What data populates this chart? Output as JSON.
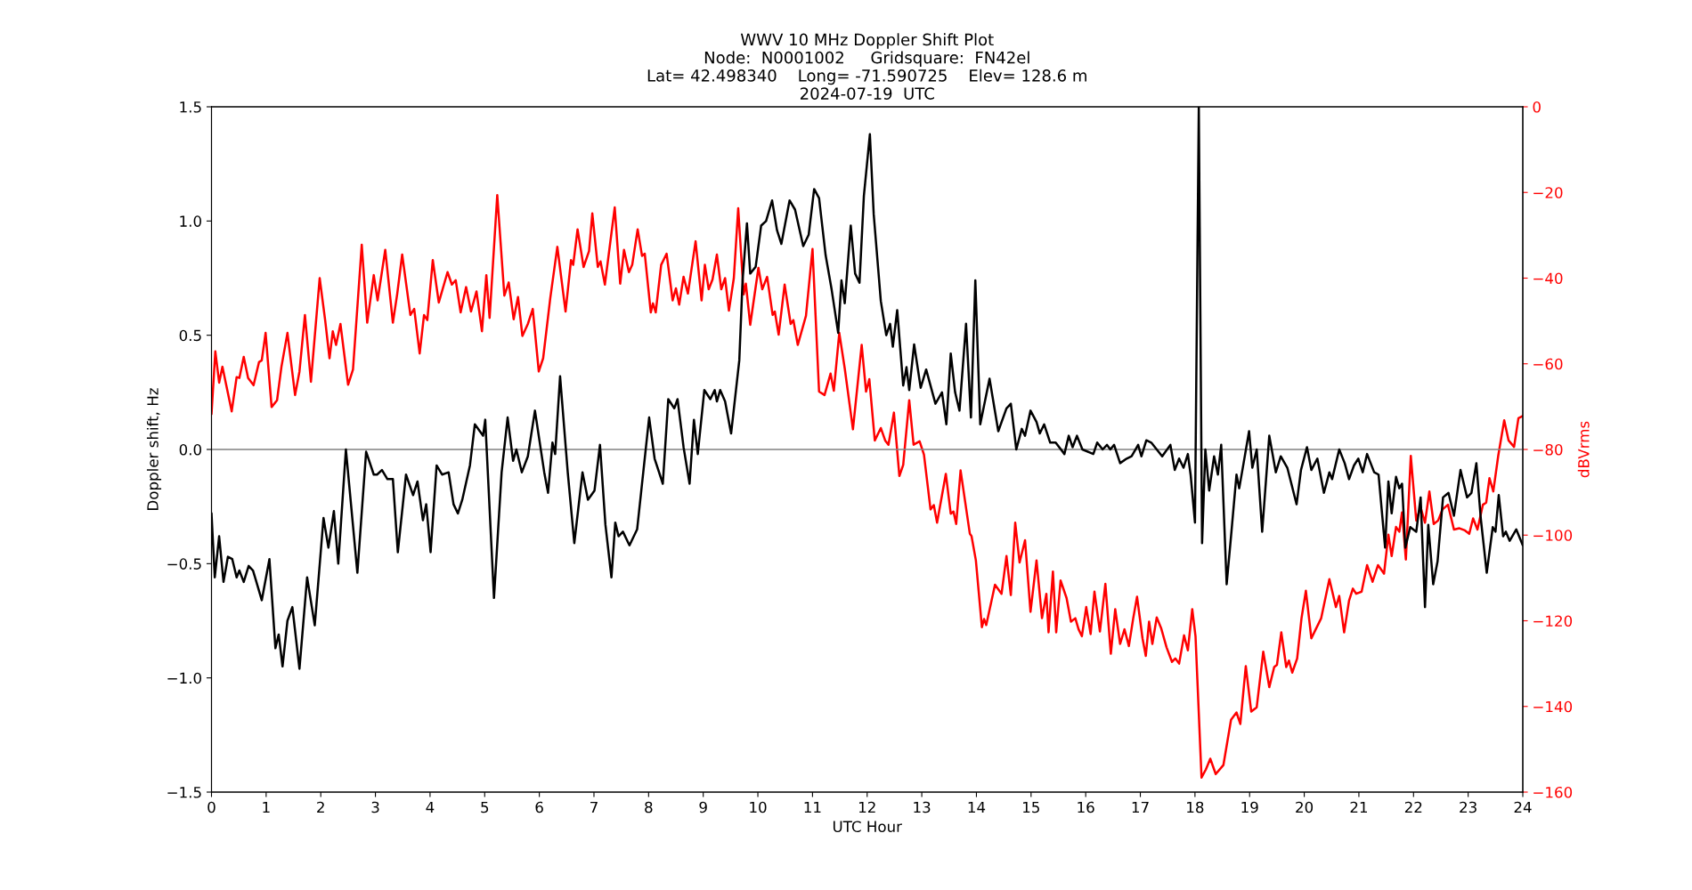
{
  "chart_data": {
    "type": "line",
    "title": "WWV 10 MHz Doppler Shift Plot\nNode:  N0001002     Gridsquare:  FN42el\nLat= 42.498340    Long= -71.590725    Elev= 128.6 m\n2024-07-19  UTC",
    "xlabel": "UTC Hour",
    "ylabel": "Doppler shift, Hz",
    "y2label": "dBVrms",
    "xlim": [
      0,
      24
    ],
    "xticks": [
      0,
      1,
      2,
      3,
      4,
      5,
      6,
      7,
      8,
      9,
      10,
      11,
      12,
      13,
      14,
      15,
      16,
      17,
      18,
      19,
      20,
      21,
      22,
      23,
      24
    ],
    "ylim": [
      -1.5,
      1.5
    ],
    "yticks": [
      -1.5,
      {
        "value": -1,
        "label": "−1.0"
      },
      -0.5,
      {
        "value": 0,
        "label": "0.0"
      },
      0.5,
      {
        "value": 1,
        "label": "1.0"
      },
      1.5
    ],
    "y2lim": [
      -160,
      0
    ],
    "y2ticks": [
      -160,
      -140,
      -120,
      -100,
      -80,
      -60,
      -40,
      -20,
      0
    ],
    "grid": false,
    "legend": false,
    "ref_lines": [
      {
        "axis": "y",
        "value": 0,
        "color": "#808080"
      }
    ],
    "series": [
      {
        "color": "#000000",
        "x": [
          0,
          0.06,
          0.14,
          0.22,
          0.3,
          0.38,
          0.46,
          0.51,
          0.59,
          0.68,
          0.76,
          0.81,
          0.92,
          1.06,
          1.17,
          1.23,
          1.3,
          1.39,
          1.48,
          1.61,
          1.75,
          1.89,
          2.05,
          2.14,
          2.24,
          2.32,
          2.46,
          2.67,
          2.83,
          2.97,
          3.03,
          3.12,
          3.22,
          3.32,
          3.41,
          3.56,
          3.69,
          3.77,
          3.87,
          3.93,
          4.01,
          4.12,
          4.22,
          4.34,
          4.43,
          4.51,
          4.59,
          4.73,
          4.82,
          4.97,
          5.01,
          5.17,
          5.31,
          5.42,
          5.52,
          5.58,
          5.68,
          5.79,
          5.92,
          6.09,
          6.16,
          6.24,
          6.29,
          6.38,
          6.52,
          6.64,
          6.79,
          6.89,
          7.01,
          7.11,
          7.21,
          7.32,
          7.39,
          7.45,
          7.53,
          7.65,
          7.79,
          8.01,
          8.11,
          8.26,
          8.36,
          8.47,
          8.53,
          8.64,
          8.75,
          8.83,
          8.9,
          9.02,
          9.13,
          9.21,
          9.25,
          9.31,
          9.4,
          9.51,
          9.66,
          9.72,
          9.8,
          9.86,
          9.96,
          10.06,
          10.15,
          10.26,
          10.35,
          10.43,
          10.58,
          10.68,
          10.83,
          10.93,
          11.03,
          11.12,
          11.24,
          11.35,
          11.47,
          11.53,
          11.59,
          11.7,
          11.78,
          11.86,
          11.94,
          12.05,
          12.12,
          12.25,
          12.35,
          12.42,
          12.47,
          12.55,
          12.66,
          12.72,
          12.77,
          12.86,
          12.98,
          13.08,
          13.25,
          13.37,
          13.45,
          13.53,
          13.61,
          13.69,
          13.81,
          13.9,
          13.98,
          14.07,
          14.24,
          14.4,
          14.55,
          14.63,
          14.73,
          14.83,
          14.89,
          14.99,
          15.1,
          15.16,
          15.24,
          15.35,
          15.45,
          15.61,
          15.69,
          15.76,
          15.84,
          15.94,
          16.14,
          16.21,
          16.31,
          16.39,
          16.45,
          16.52,
          16.63,
          16.75,
          16.84,
          16.96,
          17.02,
          17.11,
          17.2,
          17.3,
          17.4,
          17.55,
          17.63,
          17.71,
          17.79,
          17.87,
          17.92,
          18.0,
          18.07,
          18.13,
          18.19,
          18.26,
          18.35,
          18.42,
          18.48,
          18.58,
          18.66,
          18.76,
          18.81,
          18.89,
          18.99,
          19.05,
          19.13,
          19.23,
          19.36,
          19.48,
          19.57,
          19.69,
          19.86,
          19.94,
          20.05,
          20.13,
          20.24,
          20.36,
          20.46,
          20.51,
          20.64,
          20.74,
          20.82,
          20.91,
          20.99,
          21.07,
          21.15,
          21.28,
          21.36,
          21.48,
          21.54,
          21.6,
          21.68,
          21.74,
          21.79,
          21.85,
          21.94,
          22.05,
          22.13,
          22.21,
          22.27,
          22.36,
          22.44,
          22.54,
          22.64,
          22.74,
          22.86,
          22.98,
          23.06,
          23.15,
          23.23,
          23.34,
          23.45,
          23.5,
          23.56,
          23.64,
          23.69,
          23.76,
          23.88,
          24.0
        ],
        "values": [
          -0.28,
          -0.56,
          -0.38,
          -0.58,
          -0.47,
          -0.48,
          -0.56,
          -0.53,
          -0.58,
          -0.51,
          -0.53,
          -0.57,
          -0.66,
          -0.48,
          -0.87,
          -0.81,
          -0.95,
          -0.75,
          -0.69,
          -0.96,
          -0.56,
          -0.77,
          -0.3,
          -0.43,
          -0.27,
          -0.5,
          0.0,
          -0.54,
          -0.01,
          -0.11,
          -0.11,
          -0.09,
          -0.13,
          -0.13,
          -0.45,
          -0.11,
          -0.2,
          -0.14,
          -0.31,
          -0.24,
          -0.45,
          -0.07,
          -0.11,
          -0.1,
          -0.24,
          -0.28,
          -0.22,
          -0.07,
          0.11,
          0.06,
          0.13,
          -0.65,
          -0.1,
          0.14,
          -0.05,
          0.0,
          -0.1,
          -0.03,
          0.17,
          -0.1,
          -0.19,
          0.03,
          -0.02,
          0.32,
          -0.1,
          -0.41,
          -0.1,
          -0.22,
          -0.18,
          0.02,
          -0.33,
          -0.56,
          -0.32,
          -0.38,
          -0.36,
          -0.42,
          -0.35,
          0.14,
          -0.04,
          -0.15,
          0.22,
          0.18,
          0.22,
          0.01,
          -0.15,
          0.13,
          -0.02,
          0.26,
          0.22,
          0.26,
          0.21,
          0.26,
          0.21,
          0.07,
          0.39,
          0.74,
          0.99,
          0.77,
          0.8,
          0.98,
          1.0,
          1.09,
          0.96,
          0.9,
          1.09,
          1.05,
          0.89,
          0.94,
          1.14,
          1.1,
          0.85,
          0.7,
          0.51,
          0.74,
          0.64,
          0.98,
          0.77,
          0.73,
          1.11,
          1.38,
          1.03,
          0.65,
          0.5,
          0.55,
          0.45,
          0.61,
          0.28,
          0.36,
          0.26,
          0.46,
          0.27,
          0.35,
          0.2,
          0.25,
          0.11,
          0.42,
          0.25,
          0.17,
          0.55,
          0.14,
          0.74,
          0.11,
          0.31,
          0.08,
          0.18,
          0.2,
          0.0,
          0.09,
          0.06,
          0.17,
          0.12,
          0.07,
          0.11,
          0.03,
          0.03,
          -0.02,
          0.06,
          0.01,
          0.06,
          0.0,
          -0.02,
          0.03,
          0.0,
          0.02,
          0.0,
          0.02,
          -0.06,
          -0.04,
          -0.03,
          0.02,
          -0.03,
          0.04,
          0.03,
          0.0,
          -0.03,
          0.02,
          -0.09,
          -0.04,
          -0.08,
          -0.02,
          -0.11,
          -0.32,
          1.5,
          -0.41,
          0.0,
          -0.18,
          -0.03,
          -0.11,
          0.02,
          -0.59,
          -0.38,
          -0.11,
          -0.17,
          -0.06,
          0.08,
          -0.08,
          0.0,
          -0.36,
          0.06,
          -0.1,
          -0.03,
          -0.08,
          -0.24,
          -0.09,
          0.01,
          -0.09,
          -0.04,
          -0.19,
          -0.1,
          -0.13,
          0.0,
          -0.06,
          -0.13,
          -0.07,
          -0.04,
          -0.1,
          -0.02,
          -0.1,
          -0.11,
          -0.43,
          -0.14,
          -0.28,
          -0.12,
          -0.17,
          -0.15,
          -0.43,
          -0.34,
          -0.36,
          -0.21,
          -0.69,
          -0.33,
          -0.59,
          -0.49,
          -0.21,
          -0.19,
          -0.29,
          -0.09,
          -0.21,
          -0.19,
          -0.06,
          -0.3,
          -0.54,
          -0.34,
          -0.36,
          -0.2,
          -0.38,
          -0.36,
          -0.4,
          -0.35,
          -0.42
        ]
      },
      {
        "color": "#ff0000",
        "axis": "y2",
        "x": [
          0,
          0.07,
          0.14,
          0.2,
          0.37,
          0.46,
          0.51,
          0.59,
          0.67,
          0.77,
          0.87,
          0.92,
          0.99,
          1.1,
          1.2,
          1.28,
          1.39,
          1.53,
          1.61,
          1.71,
          1.82,
          1.98,
          2.08,
          2.16,
          2.22,
          2.28,
          2.36,
          2.5,
          2.59,
          2.75,
          2.85,
          2.97,
          3.04,
          3.18,
          3.32,
          3.4,
          3.49,
          3.64,
          3.71,
          3.81,
          3.89,
          3.95,
          4.05,
          4.16,
          4.32,
          4.4,
          4.47,
          4.56,
          4.66,
          4.75,
          4.85,
          4.95,
          5.03,
          5.09,
          5.23,
          5.36,
          5.44,
          5.53,
          5.61,
          5.69,
          5.79,
          5.88,
          5.99,
          6.07,
          6.2,
          6.33,
          6.48,
          6.58,
          6.62,
          6.7,
          6.81,
          6.91,
          6.97,
          7.07,
          7.12,
          7.2,
          7.38,
          7.48,
          7.55,
          7.64,
          7.7,
          7.8,
          7.88,
          7.93,
          8.04,
          8.08,
          8.13,
          8.23,
          8.33,
          8.44,
          8.5,
          8.56,
          8.64,
          8.72,
          8.86,
          8.97,
          9.03,
          9.1,
          9.17,
          9.25,
          9.33,
          9.4,
          9.47,
          9.56,
          9.64,
          9.74,
          9.78,
          9.86,
          10.01,
          10.08,
          10.17,
          10.27,
          10.31,
          10.38,
          10.49,
          10.6,
          10.65,
          10.73,
          10.88,
          11.0,
          11.12,
          11.22,
          11.33,
          11.39,
          11.49,
          11.59,
          11.74,
          11.9,
          11.98,
          12.04,
          12.14,
          12.25,
          12.33,
          12.39,
          12.49,
          12.59,
          12.66,
          12.77,
          12.85,
          12.96,
          13.04,
          13.16,
          13.22,
          13.28,
          13.44,
          13.53,
          13.58,
          13.63,
          13.71,
          13.88,
          13.91,
          13.99,
          14.1,
          14.14,
          14.18,
          14.34,
          14.46,
          14.55,
          14.63,
          14.71,
          14.79,
          14.89,
          14.99,
          15.1,
          15.2,
          15.28,
          15.32,
          15.4,
          15.46,
          15.54,
          15.65,
          15.73,
          15.81,
          15.87,
          15.93,
          16.01,
          16.09,
          16.16,
          16.26,
          16.36,
          16.46,
          16.54,
          16.63,
          16.71,
          16.79,
          16.87,
          16.94,
          17.04,
          17.1,
          17.16,
          17.22,
          17.3,
          17.38,
          17.48,
          17.58,
          17.64,
          17.71,
          17.8,
          17.87,
          17.95,
          18.01,
          18.12,
          18.2,
          18.28,
          18.38,
          18.52,
          18.66,
          18.76,
          18.83,
          18.93,
          19.03,
          19.13,
          19.25,
          19.36,
          19.45,
          19.5,
          19.58,
          19.67,
          19.72,
          19.78,
          19.87,
          19.95,
          20.03,
          20.13,
          20.21,
          20.31,
          20.46,
          20.58,
          20.64,
          20.73,
          20.82,
          20.89,
          20.95,
          21.05,
          21.15,
          21.25,
          21.35,
          21.46,
          21.54,
          21.6,
          21.68,
          21.74,
          21.79,
          21.86,
          21.95,
          22.05,
          22.13,
          22.21,
          22.29,
          22.37,
          22.45,
          22.53,
          22.63,
          22.74,
          22.84,
          22.94,
          23.02,
          23.09,
          23.17,
          23.27,
          23.33,
          23.39,
          23.46,
          23.55,
          23.66,
          23.74,
          23.84,
          23.92,
          24.0
        ],
        "values": [
          -71.7,
          -57.1,
          -64.4,
          -60.7,
          -71.1,
          -63.1,
          -63.3,
          -58.4,
          -63.3,
          -65.0,
          -59.6,
          -59.2,
          -52.8,
          -70.1,
          -68.5,
          -60.7,
          -52.8,
          -67.3,
          -61.8,
          -48.6,
          -64.2,
          -40.0,
          -49.8,
          -58.7,
          -52.4,
          -55.6,
          -50.7,
          -64.9,
          -61.3,
          -32.2,
          -50.4,
          -39.3,
          -45.2,
          -33.4,
          -50.4,
          -43.6,
          -34.5,
          -48.6,
          -47.2,
          -57.6,
          -48.6,
          -49.8,
          -35.8,
          -45.7,
          -38.6,
          -41.5,
          -40.5,
          -48.0,
          -42.1,
          -47.8,
          -43.1,
          -52.4,
          -39.3,
          -49.3,
          -20.6,
          -44.1,
          -41.0,
          -49.6,
          -44.4,
          -53.5,
          -50.7,
          -47.2,
          -61.8,
          -58.7,
          -44.7,
          -32.7,
          -47.8,
          -35.8,
          -36.9,
          -28.6,
          -37.4,
          -33.7,
          -24.9,
          -37.4,
          -36.1,
          -41.5,
          -23.5,
          -41.3,
          -33.4,
          -38.6,
          -36.9,
          -28.6,
          -34.8,
          -34.3,
          -48.0,
          -45.9,
          -48.0,
          -36.9,
          -34.3,
          -45.2,
          -42.4,
          -46.2,
          -39.7,
          -43.6,
          -31.4,
          -45.2,
          -36.9,
          -42.6,
          -40.3,
          -34.5,
          -42.6,
          -40.0,
          -47.6,
          -40.0,
          -23.7,
          -43.8,
          -41.3,
          -50.9,
          -37.6,
          -42.6,
          -39.7,
          -48.6,
          -47.8,
          -53.2,
          -41.5,
          -50.7,
          -49.8,
          -55.6,
          -48.8,
          -33.2,
          -66.5,
          -67.3,
          -62.3,
          -66.3,
          -52.8,
          -61.1,
          -75.3,
          -55.6,
          -66.5,
          -63.6,
          -77.9,
          -75.0,
          -77.9,
          -78.9,
          -71.4,
          -86.2,
          -83.6,
          -68.5,
          -78.9,
          -78.1,
          -81.2,
          -94.0,
          -93.0,
          -97.1,
          -85.7,
          -95.0,
          -94.5,
          -97.4,
          -84.9,
          -99.7,
          -100.2,
          -105.9,
          -121.5,
          -119.6,
          -121.0,
          -111.6,
          -113.7,
          -104.9,
          -114.0,
          -97.1,
          -106.4,
          -101.2,
          -117.9,
          -105.9,
          -119.4,
          -113.7,
          -122.7,
          -108.5,
          -122.7,
          -110.6,
          -114.7,
          -120.2,
          -119.4,
          -122.0,
          -123.6,
          -116.8,
          -123.1,
          -113.2,
          -122.5,
          -111.4,
          -127.7,
          -117.3,
          -125.4,
          -122.0,
          -125.9,
          -119.4,
          -114.4,
          -124.1,
          -128.2,
          -120.2,
          -125.4,
          -119.2,
          -121.7,
          -126.2,
          -129.6,
          -128.8,
          -130.0,
          -123.4,
          -126.9,
          -117.3,
          -123.6,
          -156.6,
          -154.7,
          -152.2,
          -155.8,
          -153.7,
          -143.1,
          -141.4,
          -144.1,
          -130.6,
          -141.2,
          -140.2,
          -127.2,
          -135.5,
          -130.8,
          -130.3,
          -122.7,
          -130.8,
          -129.3,
          -132.1,
          -128.8,
          -119.4,
          -113.0,
          -124.1,
          -122.0,
          -119.4,
          -110.3,
          -116.8,
          -114.2,
          -122.7,
          -115.3,
          -112.5,
          -113.7,
          -113.2,
          -107.0,
          -110.9,
          -107.0,
          -109.0,
          -99.9,
          -104.9,
          -98.1,
          -99.2,
          -94.7,
          -105.7,
          -81.5,
          -96.6,
          -93.5,
          -97.1,
          -89.8,
          -97.4,
          -96.6,
          -94.0,
          -92.9,
          -98.7,
          -98.4,
          -98.9,
          -99.7,
          -96.1,
          -98.7,
          -92.9,
          -92.4,
          -86.7,
          -89.8,
          -81.5,
          -73.2,
          -77.9,
          -79.4,
          -72.7,
          -72.2
        ]
      }
    ]
  }
}
